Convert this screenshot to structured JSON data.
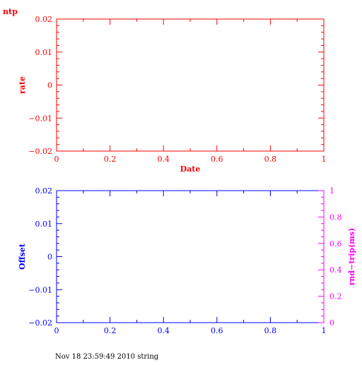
{
  "page": {
    "corner_label": "ntp",
    "footer": "Nov 18 23:59:49 2010 string"
  },
  "chart_data": [
    {
      "type": "line",
      "title": "",
      "xlabel": "Date",
      "ylabel": "rate",
      "xlim": [
        0,
        1
      ],
      "ylim": [
        -0.02,
        0.02
      ],
      "x_ticks": [
        0,
        0.2,
        0.4,
        0.6,
        0.8,
        1
      ],
      "x_tick_labels": [
        "0",
        "0.2",
        "0.4",
        "0.6",
        "0.8",
        "1"
      ],
      "y_ticks": [
        -0.02,
        -0.01,
        0,
        0.01,
        0.02
      ],
      "y_tick_labels": [
        "−0.02",
        "−0.01",
        "0",
        "0.01",
        "0.02"
      ],
      "series": [],
      "grid": false,
      "color": "#ff0000"
    },
    {
      "type": "line",
      "title": "",
      "xlabel": "",
      "ylabel": "Offset",
      "y2label": "rnd−trip(ms)",
      "xlim": [
        0,
        1
      ],
      "ylim": [
        -0.02,
        0.02
      ],
      "y2lim": [
        0,
        1
      ],
      "x_ticks": [
        0,
        0.2,
        0.4,
        0.6,
        0.8,
        1
      ],
      "x_tick_labels": [
        "0",
        "0.2",
        "0.4",
        "0.6",
        "0.8",
        "1"
      ],
      "y_ticks": [
        -0.02,
        -0.01,
        0,
        0.01,
        0.02
      ],
      "y_tick_labels": [
        "−0.02",
        "−0.01",
        "0",
        "0.01",
        "0.02"
      ],
      "y2_ticks": [
        0,
        0.2,
        0.4,
        0.6,
        0.8,
        1
      ],
      "y2_tick_labels": [
        "0",
        "0.2",
        "0.4",
        "0.6",
        "0.8",
        "1"
      ],
      "series": [],
      "grid": false,
      "color": "#0000ff",
      "y2color": "#ff00ff"
    }
  ]
}
